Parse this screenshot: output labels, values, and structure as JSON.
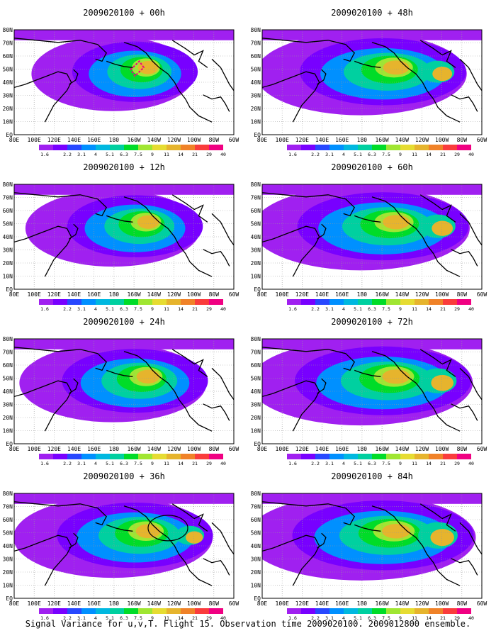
{
  "figure": {
    "caption": "Signal Variance for u,v,T. Flight 15. Observation time 2009020100. 2009012800 ensemble.",
    "colorbar_labels": [
      "1.6",
      "2.2",
      "3.1",
      "4",
      "5.1",
      "6.3",
      "7.5",
      "9",
      "11",
      "14",
      "21",
      "29",
      "40"
    ],
    "colorbar_colors": [
      "#a020f0",
      "#7800ff",
      "#2848ff",
      "#0090ff",
      "#00b8e0",
      "#00d0a0",
      "#00dc28",
      "#a0e632",
      "#e6dc32",
      "#e6b42d",
      "#f08228",
      "#fa3c3c",
      "#f00082"
    ],
    "lat_labels": [
      "80N",
      "70N",
      "60N",
      "50N",
      "40N",
      "30N",
      "20N",
      "10N",
      "EQ"
    ],
    "lon_labels": [
      "80E",
      "100E",
      "120E",
      "140E",
      "160E",
      "180",
      "160W",
      "140W",
      "120W",
      "100W",
      "80W",
      "60W"
    ],
    "panels": [
      {
        "title": "2009020100 + 00h",
        "intensity": 0.35
      },
      {
        "title": "2009020100 + 48h",
        "intensity": 0.75
      },
      {
        "title": "2009020100 + 12h",
        "intensity": 0.45
      },
      {
        "title": "2009020100 + 60h",
        "intensity": 0.8
      },
      {
        "title": "2009020100 + 24h",
        "intensity": 0.55
      },
      {
        "title": "2009020100 + 72h",
        "intensity": 0.85
      },
      {
        "title": "2009020100 + 36h",
        "intensity": 0.65
      },
      {
        "title": "2009020100 + 84h",
        "intensity": 0.9
      }
    ]
  }
}
